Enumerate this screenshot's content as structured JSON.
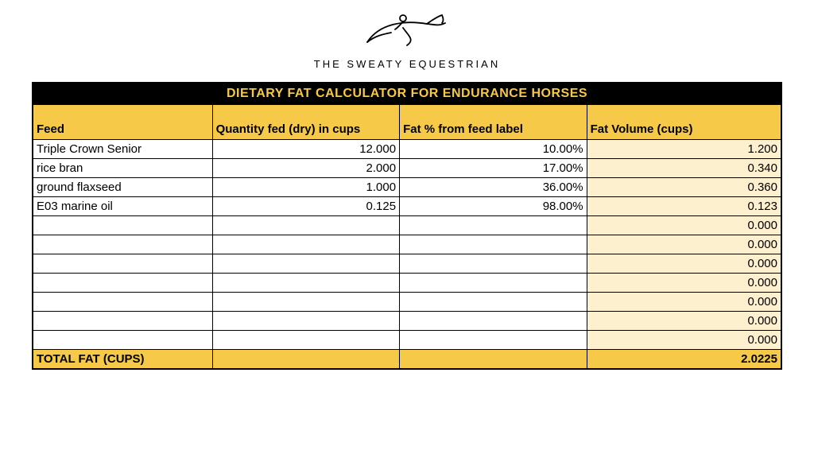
{
  "logo_text": "THE SWEATY EQUESTRIAN",
  "table": {
    "title": "DIETARY FAT CALCULATOR FOR ENDURANCE HORSES",
    "columns": [
      "Feed",
      "Quantity fed (dry) in cups",
      "Fat % from feed label",
      "Fat Volume (cups)"
    ],
    "rows": [
      {
        "feed": "Triple Crown Senior",
        "qty": "12.000",
        "pct": "10.00%",
        "fat": "1.200"
      },
      {
        "feed": "rice bran",
        "qty": "2.000",
        "pct": "17.00%",
        "fat": "0.340"
      },
      {
        "feed": "ground flaxseed",
        "qty": "1.000",
        "pct": "36.00%",
        "fat": "0.360"
      },
      {
        "feed": "E03 marine oil",
        "qty": "0.125",
        "pct": "98.00%",
        "fat": "0.123"
      },
      {
        "feed": "",
        "qty": "",
        "pct": "",
        "fat": "0.000"
      },
      {
        "feed": "",
        "qty": "",
        "pct": "",
        "fat": "0.000"
      },
      {
        "feed": "",
        "qty": "",
        "pct": "",
        "fat": "0.000"
      },
      {
        "feed": "",
        "qty": "",
        "pct": "",
        "fat": "0.000"
      },
      {
        "feed": "",
        "qty": "",
        "pct": "",
        "fat": "0.000"
      },
      {
        "feed": "",
        "qty": "",
        "pct": "",
        "fat": "0.000"
      },
      {
        "feed": "",
        "qty": "",
        "pct": "",
        "fat": "0.000"
      }
    ],
    "total_label": "TOTAL FAT (CUPS)",
    "total_value": "2.0225",
    "colors": {
      "title_bg": "#000000",
      "title_fg": "#f7c948",
      "header_bg": "#f7c948",
      "fat_col_bg": "#fdf0cf",
      "border": "#000000"
    }
  }
}
